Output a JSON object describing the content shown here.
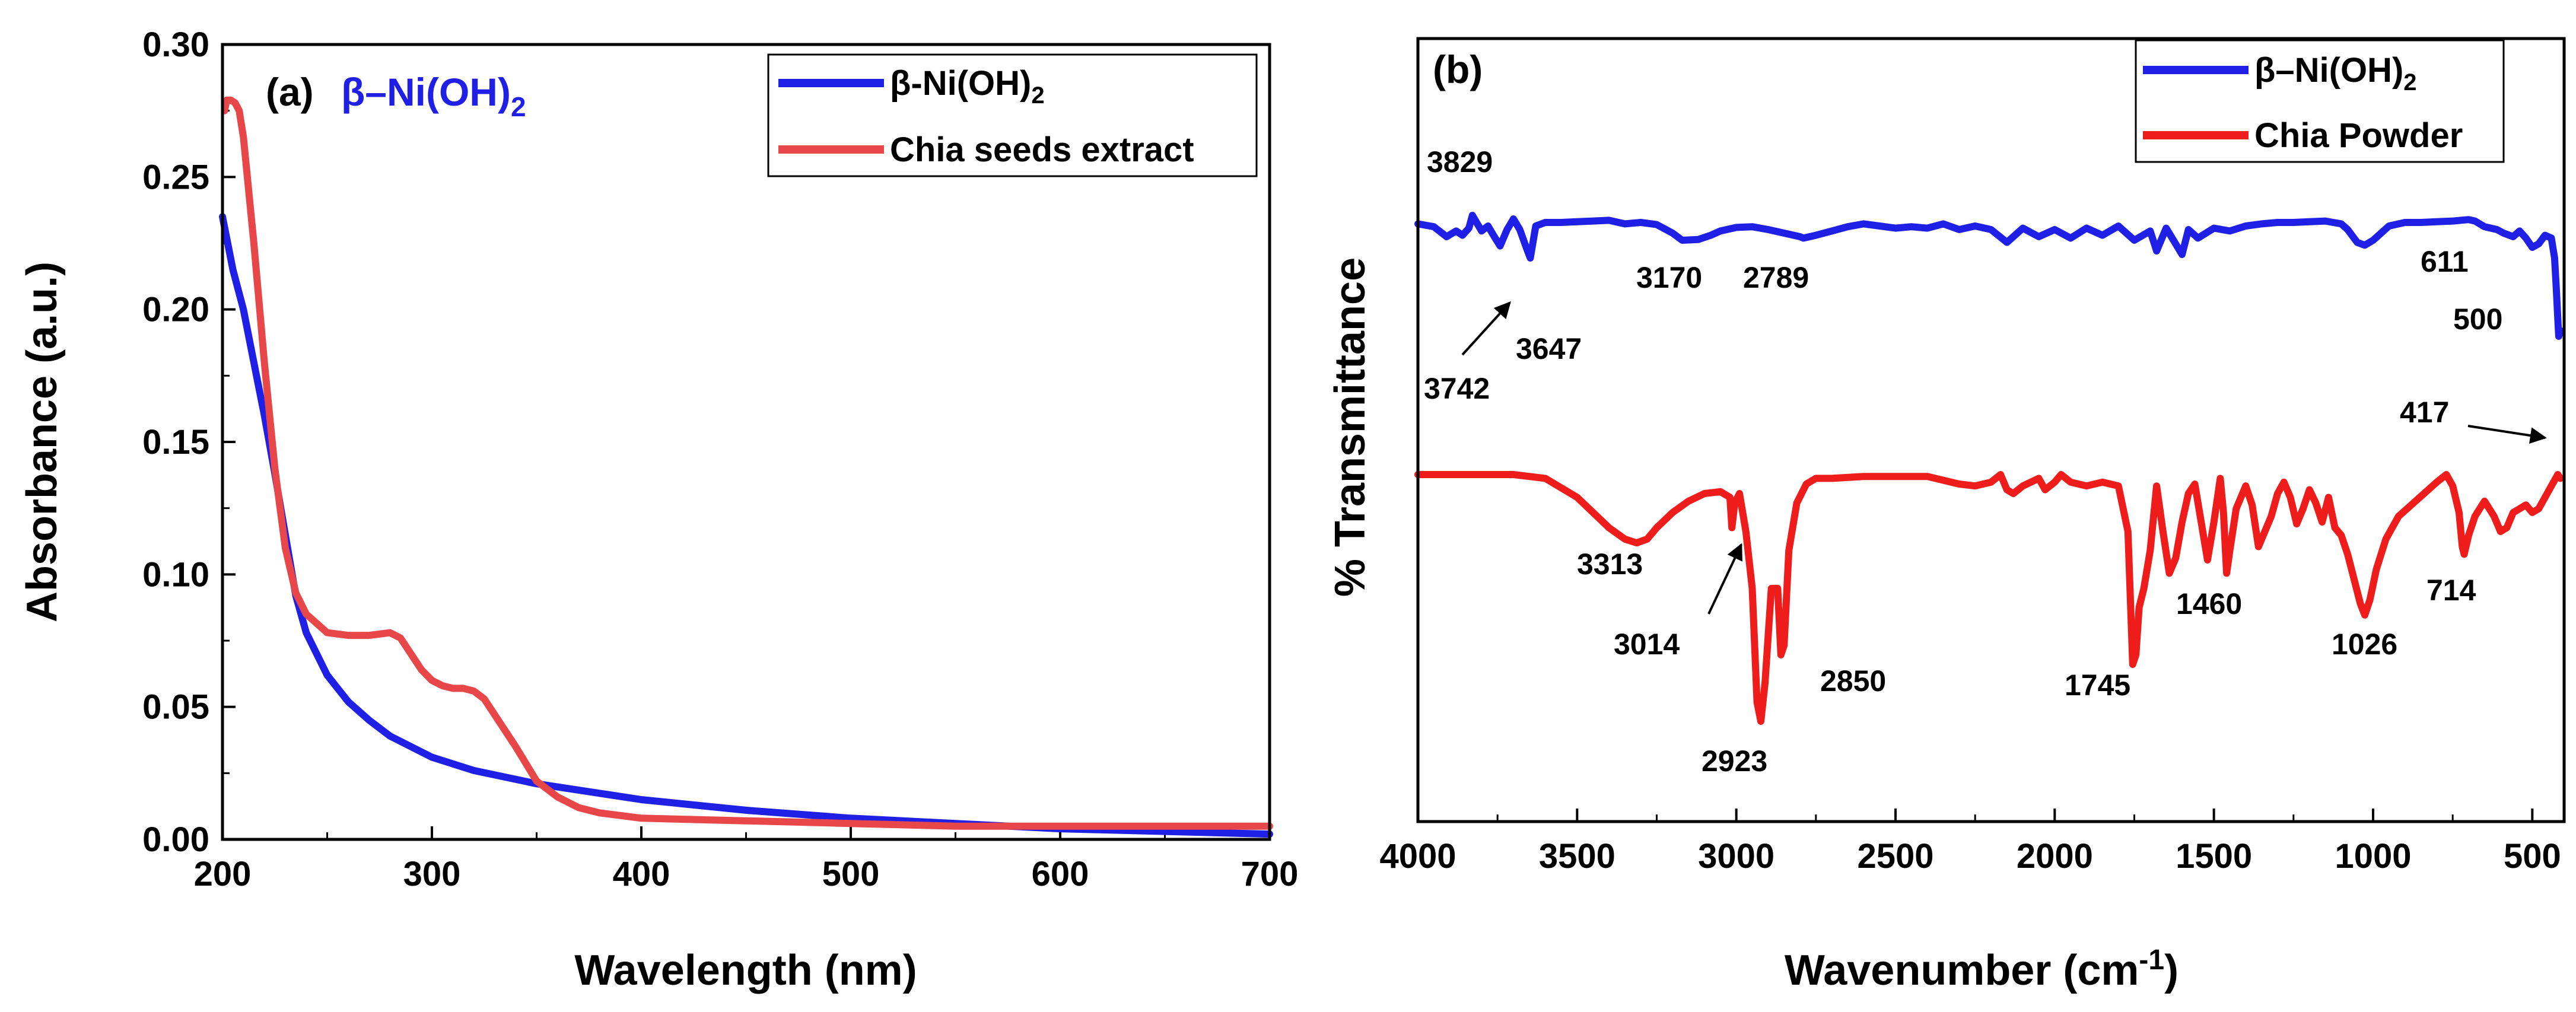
{
  "chart_data": [
    {
      "type": "line",
      "panel_label": "(a)",
      "title_prefix": "β–Ni(OH)",
      "title_sub": "2",
      "xlabel": "Wavelength (nm)",
      "ylabel": "Absorbance (a.u.)",
      "xlim": [
        200,
        700
      ],
      "ylim": [
        0,
        0.3
      ],
      "xticks": [
        "200",
        "300",
        "400",
        "500",
        "600",
        "700"
      ],
      "yticks": [
        "0.00",
        "0.05",
        "0.10",
        "0.15",
        "0.20",
        "0.25",
        "0.30"
      ],
      "legend_location": "top-right",
      "series": [
        {
          "name": "β-Ni(OH)",
          "name_sub": "2",
          "color": "#1f1fe6",
          "x": [
            200,
            205,
            210,
            215,
            220,
            225,
            230,
            235,
            240,
            250,
            260,
            270,
            280,
            300,
            320,
            350,
            400,
            450,
            500,
            550,
            600,
            650,
            700
          ],
          "y": [
            0.235,
            0.215,
            0.2,
            0.18,
            0.16,
            0.138,
            0.115,
            0.092,
            0.078,
            0.062,
            0.052,
            0.045,
            0.039,
            0.031,
            0.026,
            0.021,
            0.015,
            0.011,
            0.008,
            0.006,
            0.004,
            0.003,
            0.002
          ]
        },
        {
          "name": "Chia seeds extract",
          "color": "#e8474a",
          "x": [
            201,
            202,
            204,
            206,
            208,
            210,
            215,
            220,
            225,
            230,
            235,
            240,
            250,
            260,
            270,
            280,
            285,
            290,
            295,
            300,
            305,
            310,
            315,
            320,
            325,
            330,
            340,
            350,
            360,
            370,
            380,
            400,
            450,
            500,
            550,
            600,
            650,
            700
          ],
          "y": [
            0.275,
            0.279,
            0.279,
            0.278,
            0.275,
            0.265,
            0.225,
            0.18,
            0.14,
            0.11,
            0.093,
            0.085,
            0.078,
            0.077,
            0.077,
            0.078,
            0.076,
            0.07,
            0.064,
            0.06,
            0.058,
            0.057,
            0.057,
            0.056,
            0.053,
            0.047,
            0.035,
            0.022,
            0.016,
            0.012,
            0.01,
            0.008,
            0.007,
            0.006,
            0.005,
            0.005,
            0.005,
            0.005
          ]
        }
      ]
    },
    {
      "type": "line",
      "panel_label": "(b)",
      "xlabel_main": "Wavenumber (cm",
      "xlabel_sup": "-1",
      "xlabel_end": ")",
      "ylabel": "% Transmittance",
      "xlim": [
        4000,
        400
      ],
      "xaxis_reversed": true,
      "xticks": [
        "4000",
        "3500",
        "3000",
        "2500",
        "2000",
        "1500",
        "1000",
        "500"
      ],
      "legend_location": "top-right",
      "series": [
        {
          "name": "β–Ni(OH)",
          "name_sub": "2",
          "color": "#1f1fe6",
          "x": [
            4000,
            3950,
            3910,
            3880,
            3860,
            3840,
            3829,
            3800,
            3780,
            3760,
            3742,
            3720,
            3700,
            3680,
            3660,
            3647,
            3630,
            3600,
            3550,
            3500,
            3450,
            3400,
            3350,
            3300,
            3250,
            3200,
            3170,
            3120,
            3080,
            3050,
            3000,
            2950,
            2900,
            2850,
            2800,
            2789,
            2750,
            2700,
            2650,
            2600,
            2550,
            2500,
            2450,
            2400,
            2350,
            2300,
            2250,
            2200,
            2150,
            2100,
            2050,
            2000,
            1950,
            1900,
            1850,
            1800,
            1750,
            1700,
            1680,
            1650,
            1600,
            1580,
            1550,
            1500,
            1450,
            1400,
            1350,
            1300,
            1250,
            1200,
            1150,
            1100,
            1080,
            1050,
            1026,
            1000,
            950,
            900,
            850,
            800,
            750,
            700,
            680,
            650,
            611,
            590,
            560,
            540,
            520,
            500,
            480,
            460,
            440,
            430,
            425,
            420,
            417,
            412
          ],
          "y": [
            0.52,
            0.56,
            0.7,
            0.62,
            0.68,
            0.58,
            0.4,
            0.62,
            0.55,
            0.7,
            0.83,
            0.6,
            0.45,
            0.6,
            0.85,
            1.0,
            0.55,
            0.5,
            0.5,
            0.49,
            0.48,
            0.47,
            0.52,
            0.5,
            0.53,
            0.65,
            0.75,
            0.74,
            0.68,
            0.62,
            0.57,
            0.56,
            0.6,
            0.65,
            0.7,
            0.72,
            0.68,
            0.62,
            0.56,
            0.52,
            0.55,
            0.58,
            0.56,
            0.58,
            0.52,
            0.6,
            0.55,
            0.6,
            0.78,
            0.58,
            0.7,
            0.6,
            0.72,
            0.58,
            0.68,
            0.55,
            0.75,
            0.62,
            0.9,
            0.58,
            0.95,
            0.6,
            0.72,
            0.58,
            0.62,
            0.55,
            0.52,
            0.5,
            0.5,
            0.49,
            0.48,
            0.52,
            0.6,
            0.78,
            0.82,
            0.75,
            0.55,
            0.5,
            0.5,
            0.49,
            0.48,
            0.46,
            0.48,
            0.56,
            0.6,
            0.65,
            0.7,
            0.62,
            0.72,
            0.85,
            0.8,
            0.68,
            0.72,
            1.0,
            1.4,
            1.85,
            2.1,
            2.02
          ]
        },
        {
          "name": "Chia Powder",
          "color": "#ef1c1c",
          "x": [
            4000,
            3900,
            3800,
            3700,
            3600,
            3500,
            3450,
            3400,
            3350,
            3313,
            3280,
            3250,
            3200,
            3150,
            3100,
            3050,
            3020,
            3014,
            3005,
            2990,
            2970,
            2950,
            2935,
            2923,
            2910,
            2890,
            2870,
            2860,
            2850,
            2835,
            2810,
            2780,
            2750,
            2700,
            2600,
            2500,
            2400,
            2300,
            2250,
            2200,
            2170,
            2150,
            2130,
            2100,
            2050,
            2030,
            2000,
            1980,
            1950,
            1900,
            1850,
            1800,
            1770,
            1755,
            1745,
            1735,
            1720,
            1700,
            1680,
            1660,
            1640,
            1620,
            1600,
            1580,
            1560,
            1540,
            1520,
            1500,
            1480,
            1470,
            1460,
            1450,
            1430,
            1400,
            1380,
            1360,
            1340,
            1320,
            1300,
            1280,
            1260,
            1240,
            1220,
            1200,
            1180,
            1160,
            1140,
            1120,
            1100,
            1080,
            1060,
            1040,
            1026,
            1010,
            990,
            960,
            920,
            880,
            840,
            800,
            770,
            750,
            730,
            720,
            714,
            700,
            680,
            650,
            620,
            600,
            580,
            560,
            540,
            520,
            500,
            480,
            460,
            440,
            420,
            412
          ],
          "y": [
            0.0,
            0.0,
            0.0,
            0.0,
            0.02,
            0.12,
            0.2,
            0.28,
            0.34,
            0.36,
            0.34,
            0.28,
            0.2,
            0.14,
            0.1,
            0.09,
            0.12,
            0.28,
            0.15,
            0.1,
            0.3,
            0.6,
            1.2,
            1.3,
            1.1,
            0.6,
            0.6,
            0.95,
            0.9,
            0.4,
            0.15,
            0.05,
            0.02,
            0.02,
            0.01,
            0.01,
            0.01,
            0.05,
            0.06,
            0.04,
            0.0,
            0.08,
            0.1,
            0.06,
            0.02,
            0.08,
            0.04,
            0.0,
            0.04,
            0.06,
            0.04,
            0.06,
            0.3,
            1.0,
            0.95,
            0.7,
            0.6,
            0.4,
            0.06,
            0.3,
            0.52,
            0.44,
            0.25,
            0.1,
            0.05,
            0.25,
            0.45,
            0.25,
            0.02,
            0.2,
            0.52,
            0.4,
            0.18,
            0.06,
            0.16,
            0.38,
            0.3,
            0.22,
            0.1,
            0.04,
            0.12,
            0.26,
            0.18,
            0.08,
            0.15,
            0.25,
            0.12,
            0.28,
            0.32,
            0.42,
            0.55,
            0.68,
            0.74,
            0.66,
            0.5,
            0.34,
            0.22,
            0.16,
            0.1,
            0.04,
            0.0,
            0.06,
            0.2,
            0.38,
            0.42,
            0.32,
            0.22,
            0.14,
            0.22,
            0.3,
            0.28,
            0.2,
            0.18,
            0.16,
            0.2,
            0.18,
            0.12,
            0.06,
            0.0,
            0.02
          ]
        }
      ],
      "annotations": [
        {
          "text": "3829"
        },
        {
          "text": "3742"
        },
        {
          "text": "3647"
        },
        {
          "text": "3170"
        },
        {
          "text": "2789"
        },
        {
          "text": "611"
        },
        {
          "text": "500"
        },
        {
          "text": "417"
        },
        {
          "text": "3313"
        },
        {
          "text": "3014"
        },
        {
          "text": "2923"
        },
        {
          "text": "2850"
        },
        {
          "text": "1745"
        },
        {
          "text": "1460"
        },
        {
          "text": "1026"
        },
        {
          "text": "714"
        }
      ]
    }
  ]
}
